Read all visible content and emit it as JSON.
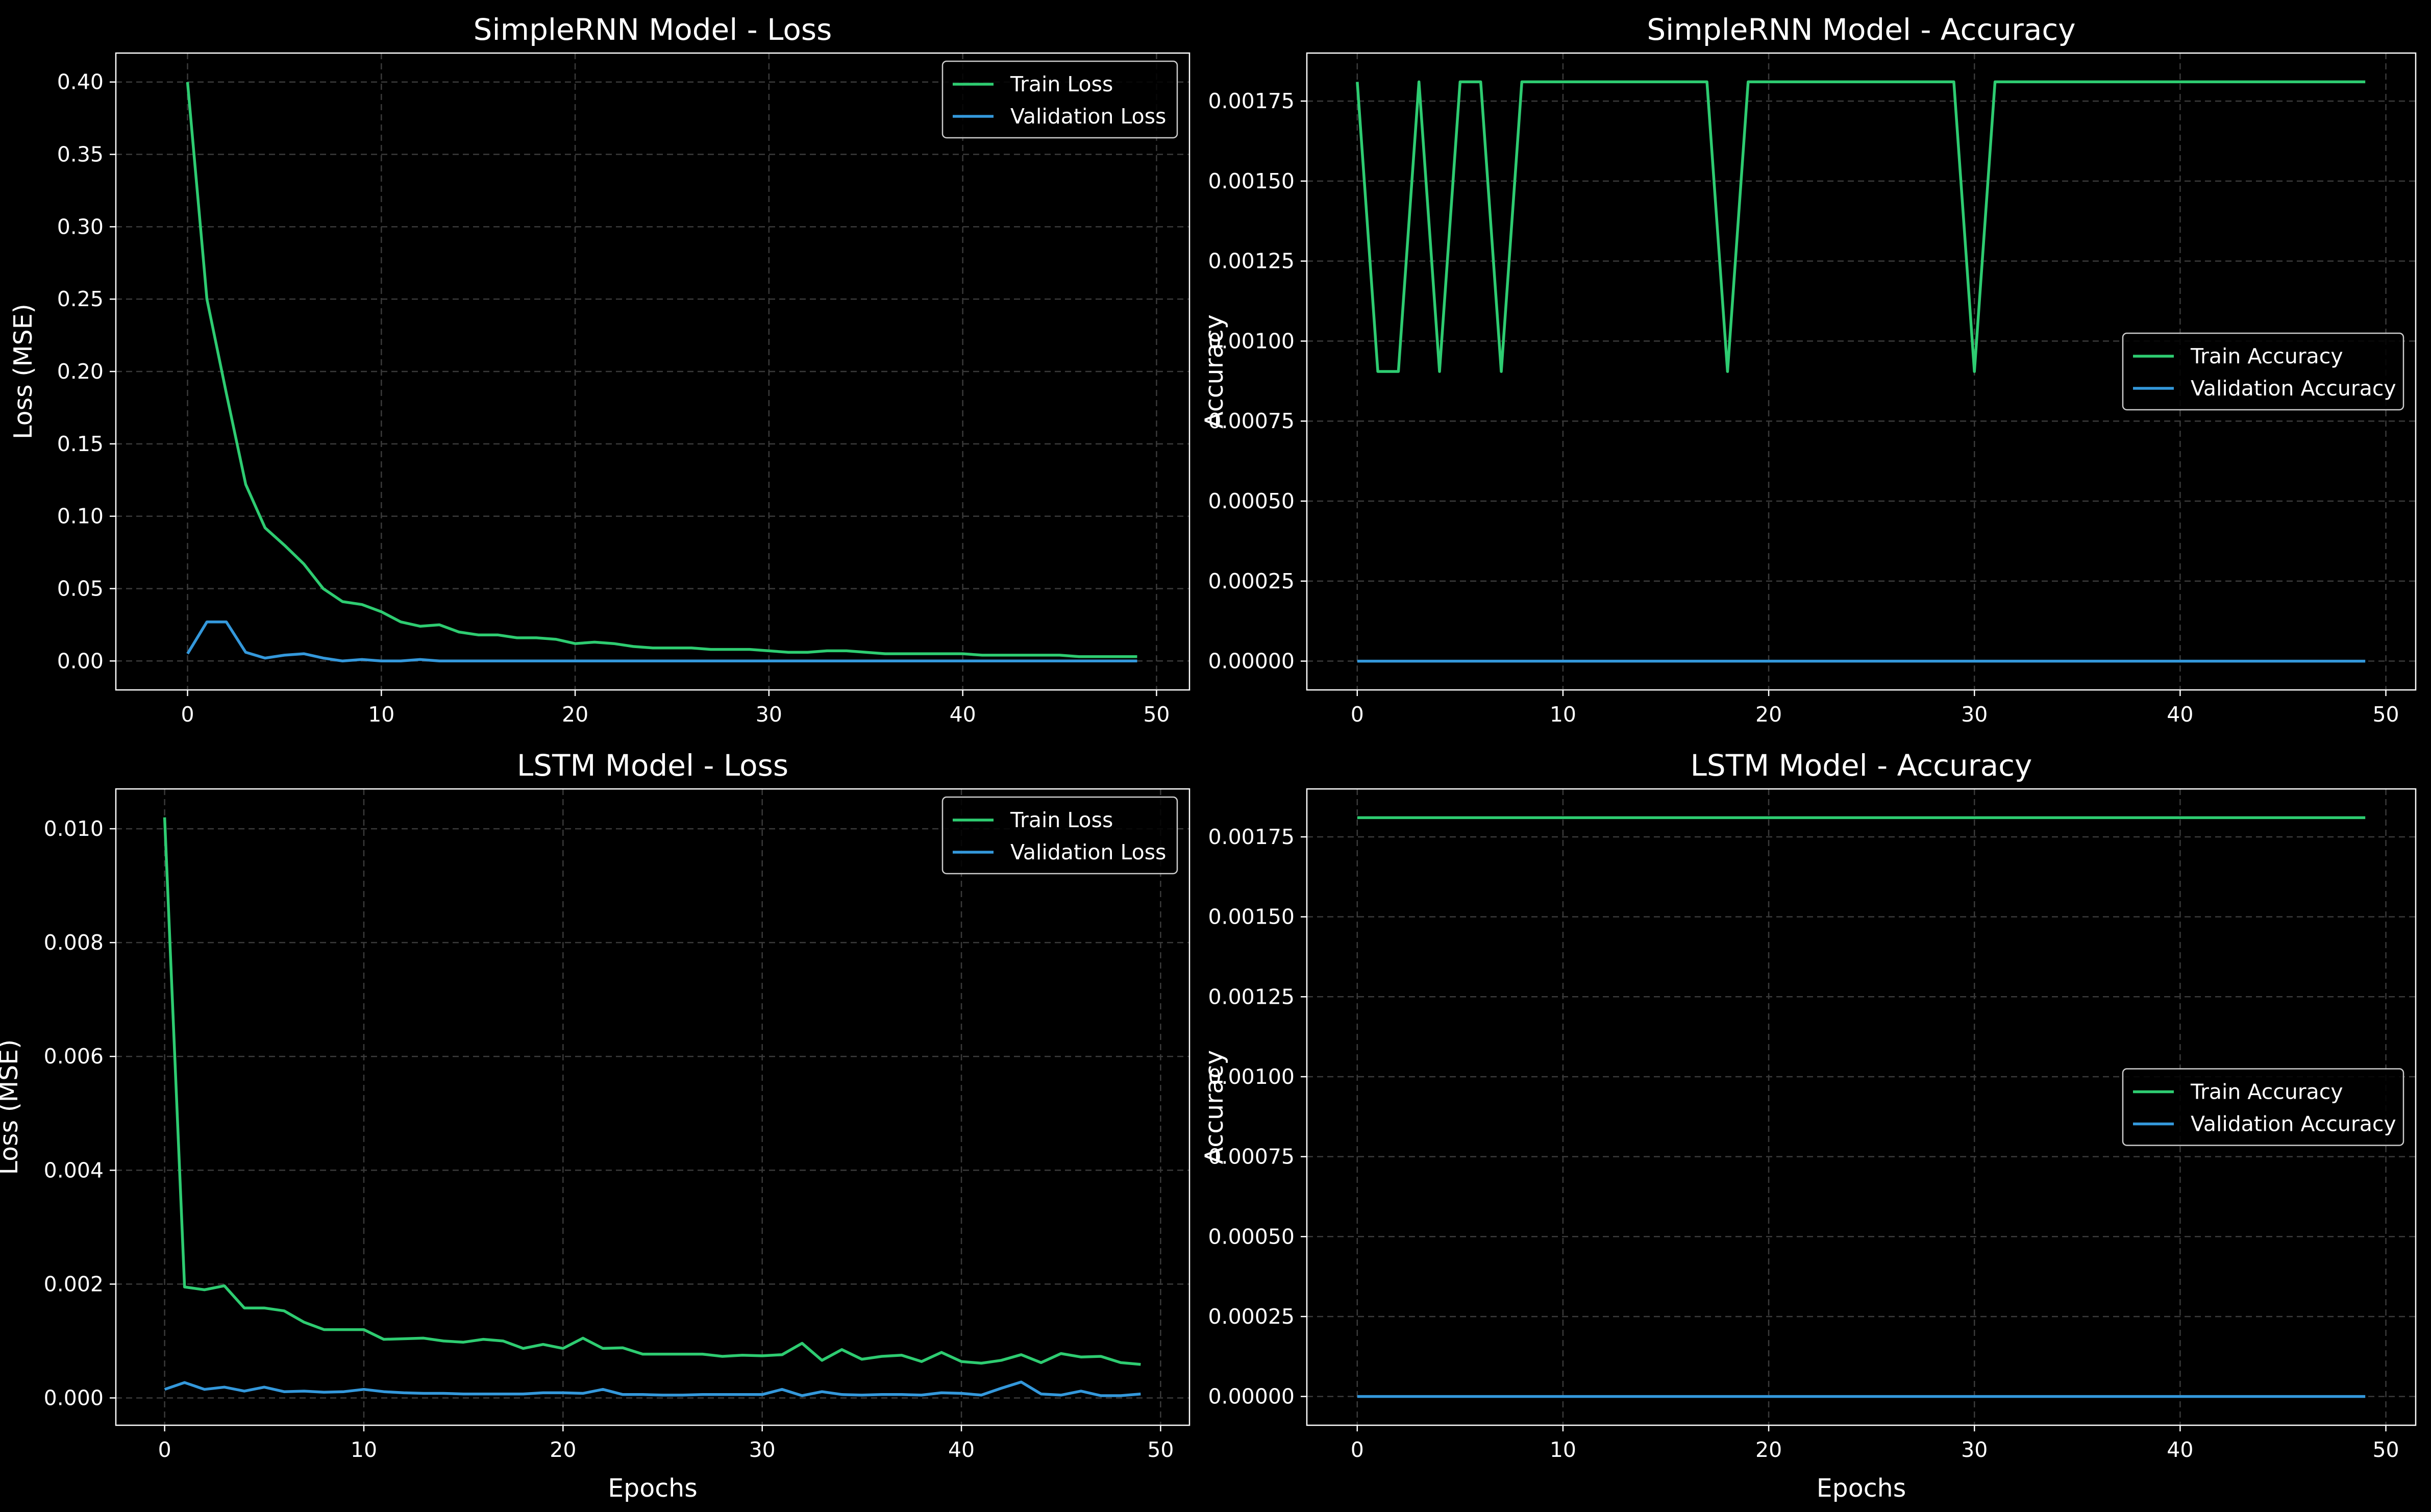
{
  "colors": {
    "background": "#000000",
    "train": "#2ecc71",
    "validation": "#3498db",
    "grid": "#3a3a3a",
    "text": "#ffffff"
  },
  "chart_data": [
    {
      "type": "line",
      "title": "SimpleRNN Model - Loss",
      "xlabel": "",
      "ylabel": "Loss (MSE)",
      "xlim": [
        -3.7,
        51.7
      ],
      "ylim": [
        -0.02,
        0.42
      ],
      "xticks": [
        0,
        10,
        20,
        30,
        40,
        50
      ],
      "xtick_labels": [
        "0",
        "10",
        "20",
        "30",
        "40",
        "50"
      ],
      "yticks": [
        0,
        0.05,
        0.1,
        0.15,
        0.2,
        0.25,
        0.3,
        0.35,
        0.4
      ],
      "ytick_labels": [
        "0.00",
        "0.05",
        "0.10",
        "0.15",
        "0.20",
        "0.25",
        "0.30",
        "0.35",
        "0.40"
      ],
      "grid": true,
      "legend_position": "upper right",
      "x": [
        0,
        1,
        2,
        3,
        4,
        5,
        6,
        7,
        8,
        9,
        10,
        11,
        12,
        13,
        14,
        15,
        16,
        17,
        18,
        19,
        20,
        21,
        22,
        23,
        24,
        25,
        26,
        27,
        28,
        29,
        30,
        31,
        32,
        33,
        34,
        35,
        36,
        37,
        38,
        39,
        40,
        41,
        42,
        43,
        44,
        45,
        46,
        47,
        48,
        49
      ],
      "series": [
        {
          "name": "Train Loss",
          "color": "#2ecc71",
          "values": [
            0.4,
            0.25,
            0.185,
            0.122,
            0.092,
            0.08,
            0.067,
            0.05,
            0.041,
            0.039,
            0.034,
            0.027,
            0.024,
            0.025,
            0.02,
            0.018,
            0.018,
            0.016,
            0.016,
            0.015,
            0.012,
            0.013,
            0.012,
            0.01,
            0.009,
            0.009,
            0.009,
            0.008,
            0.008,
            0.008,
            0.007,
            0.006,
            0.006,
            0.007,
            0.007,
            0.006,
            0.005,
            0.005,
            0.005,
            0.005,
            0.005,
            0.004,
            0.004,
            0.004,
            0.004,
            0.004,
            0.003,
            0.003,
            0.003,
            0.003
          ]
        },
        {
          "name": "Validation Loss",
          "color": "#3498db",
          "values": [
            0.005,
            0.027,
            0.027,
            0.006,
            0.002,
            0.004,
            0.005,
            0.002,
            0.0,
            0.001,
            0.0,
            0.0,
            0.001,
            0.0,
            0.0,
            0.0,
            0.0,
            0.0,
            0.0,
            0.0,
            0.0,
            0.0,
            0.0,
            0.0,
            0.0,
            0.0,
            0.0,
            0.0,
            0.0,
            0.0,
            0.0,
            0.0,
            0.0,
            0.0,
            0.0,
            0.0,
            0.0,
            0.0,
            0.0,
            0.0,
            0.0,
            0.0,
            0.0,
            0.0,
            0.0,
            0.0,
            0.0,
            0.0,
            0.0,
            0.0
          ]
        }
      ]
    },
    {
      "type": "line",
      "title": "SimpleRNN Model - Accuracy",
      "xlabel": "",
      "ylabel": "Accuracy",
      "xlim": [
        -2.45,
        51.45
      ],
      "ylim": [
        -9e-05,
        0.0019
      ],
      "xticks": [
        0,
        10,
        20,
        30,
        40,
        50
      ],
      "xtick_labels": [
        "0",
        "10",
        "20",
        "30",
        "40",
        "50"
      ],
      "yticks": [
        0,
        0.00025,
        0.0005,
        0.00075,
        0.001,
        0.00125,
        0.0015,
        0.00175
      ],
      "ytick_labels": [
        "0.00000",
        "0.00025",
        "0.00050",
        "0.00075",
        "0.00100",
        "0.00125",
        "0.00150",
        "0.00175"
      ],
      "grid": true,
      "legend_position": "center right",
      "x": [
        0,
        1,
        2,
        3,
        4,
        5,
        6,
        7,
        8,
        9,
        10,
        11,
        12,
        13,
        14,
        15,
        16,
        17,
        18,
        19,
        20,
        21,
        22,
        23,
        24,
        25,
        26,
        27,
        28,
        29,
        30,
        31,
        32,
        33,
        34,
        35,
        36,
        37,
        38,
        39,
        40,
        41,
        42,
        43,
        44,
        45,
        46,
        47,
        48,
        49
      ],
      "series": [
        {
          "name": "Train Accuracy",
          "color": "#2ecc71",
          "values": [
            0.00181,
            0.000905,
            0.000905,
            0.00181,
            0.000905,
            0.00181,
            0.00181,
            0.000905,
            0.00181,
            0.00181,
            0.00181,
            0.00181,
            0.00181,
            0.00181,
            0.00181,
            0.00181,
            0.00181,
            0.00181,
            0.000905,
            0.00181,
            0.00181,
            0.00181,
            0.00181,
            0.00181,
            0.00181,
            0.00181,
            0.00181,
            0.00181,
            0.00181,
            0.00181,
            0.000905,
            0.00181,
            0.00181,
            0.00181,
            0.00181,
            0.00181,
            0.00181,
            0.00181,
            0.00181,
            0.00181,
            0.00181,
            0.00181,
            0.00181,
            0.00181,
            0.00181,
            0.00181,
            0.00181,
            0.00181,
            0.00181,
            0.00181
          ]
        },
        {
          "name": "Validation Accuracy",
          "color": "#3498db",
          "values": [
            0,
            0,
            0,
            0,
            0,
            0,
            0,
            0,
            0,
            0,
            0,
            0,
            0,
            0,
            0,
            0,
            0,
            0,
            0,
            0,
            0,
            0,
            0,
            0,
            0,
            0,
            0,
            0,
            0,
            0,
            0,
            0,
            0,
            0,
            0,
            0,
            0,
            0,
            0,
            0,
            0,
            0,
            0,
            0,
            0,
            0,
            0,
            0,
            0,
            0
          ]
        }
      ]
    },
    {
      "type": "line",
      "title": "LSTM Model - Loss",
      "xlabel": "Epochs",
      "ylabel": "Loss (MSE)",
      "xlim": [
        -2.45,
        51.45
      ],
      "ylim": [
        -0.00048,
        0.0107
      ],
      "xticks": [
        0,
        10,
        20,
        30,
        40,
        50
      ],
      "xtick_labels": [
        "0",
        "10",
        "20",
        "30",
        "40",
        "50"
      ],
      "yticks": [
        0,
        0.002,
        0.004,
        0.006,
        0.008,
        0.01
      ],
      "ytick_labels": [
        "0.000",
        "0.002",
        "0.004",
        "0.006",
        "0.008",
        "0.010"
      ],
      "grid": true,
      "legend_position": "upper right",
      "x": [
        0,
        1,
        2,
        3,
        4,
        5,
        6,
        7,
        8,
        9,
        10,
        11,
        12,
        13,
        14,
        15,
        16,
        17,
        18,
        19,
        20,
        21,
        22,
        23,
        24,
        25,
        26,
        27,
        28,
        29,
        30,
        31,
        32,
        33,
        34,
        35,
        36,
        37,
        38,
        39,
        40,
        41,
        42,
        43,
        44,
        45,
        46,
        47,
        48,
        49
      ],
      "series": [
        {
          "name": "Train Loss",
          "color": "#2ecc71",
          "values": [
            0.0102,
            0.00195,
            0.0019,
            0.00197,
            0.00158,
            0.00158,
            0.00153,
            0.00133,
            0.0012,
            0.0012,
            0.0012,
            0.00103,
            0.00104,
            0.00105,
            0.001,
            0.00098,
            0.00103,
            0.001,
            0.00087,
            0.00094,
            0.00087,
            0.00105,
            0.00087,
            0.00088,
            0.00077,
            0.00077,
            0.00077,
            0.00077,
            0.00073,
            0.00075,
            0.00074,
            0.00076,
            0.00096,
            0.00066,
            0.00085,
            0.00068,
            0.00073,
            0.00075,
            0.00064,
            0.0008,
            0.00064,
            0.00061,
            0.00066,
            0.00076,
            0.00062,
            0.00078,
            0.00072,
            0.00073,
            0.00062,
            0.00059
          ]
        },
        {
          "name": "Validation Loss",
          "color": "#3498db",
          "values": [
            0.00015,
            0.00027,
            0.00015,
            0.00019,
            0.00012,
            0.00019,
            0.00011,
            0.00012,
            0.0001,
            0.00011,
            0.00015,
            0.00011,
            9e-05,
            8e-05,
            8e-05,
            7e-05,
            7e-05,
            7e-05,
            7e-05,
            9e-05,
            9e-05,
            8e-05,
            0.00015,
            6e-05,
            6e-05,
            5e-05,
            5e-05,
            6e-05,
            6e-05,
            6e-05,
            6e-05,
            0.00015,
            4e-05,
            0.00011,
            6e-05,
            5e-05,
            6e-05,
            6e-05,
            5e-05,
            9e-05,
            8e-05,
            5e-05,
            0.00017,
            0.00028,
            7e-05,
            5e-05,
            0.00012,
            4e-05,
            4e-05,
            7e-05
          ]
        }
      ]
    },
    {
      "type": "line",
      "title": "LSTM Model - Accuracy",
      "xlabel": "Epochs",
      "ylabel": "Accuracy",
      "xlim": [
        -2.45,
        51.45
      ],
      "ylim": [
        -9e-05,
        0.0019
      ],
      "xticks": [
        0,
        10,
        20,
        30,
        40,
        50
      ],
      "xtick_labels": [
        "0",
        "10",
        "20",
        "30",
        "40",
        "50"
      ],
      "yticks": [
        0,
        0.00025,
        0.0005,
        0.00075,
        0.001,
        0.00125,
        0.0015,
        0.00175
      ],
      "ytick_labels": [
        "0.00000",
        "0.00025",
        "0.00050",
        "0.00075",
        "0.00100",
        "0.00125",
        "0.00150",
        "0.00175"
      ],
      "grid": true,
      "legend_position": "center right",
      "x": [
        0,
        1,
        2,
        3,
        4,
        5,
        6,
        7,
        8,
        9,
        10,
        11,
        12,
        13,
        14,
        15,
        16,
        17,
        18,
        19,
        20,
        21,
        22,
        23,
        24,
        25,
        26,
        27,
        28,
        29,
        30,
        31,
        32,
        33,
        34,
        35,
        36,
        37,
        38,
        39,
        40,
        41,
        42,
        43,
        44,
        45,
        46,
        47,
        48,
        49
      ],
      "series": [
        {
          "name": "Train Accuracy",
          "color": "#2ecc71",
          "values": [
            0.00181,
            0.00181,
            0.00181,
            0.00181,
            0.00181,
            0.00181,
            0.00181,
            0.00181,
            0.00181,
            0.00181,
            0.00181,
            0.00181,
            0.00181,
            0.00181,
            0.00181,
            0.00181,
            0.00181,
            0.00181,
            0.00181,
            0.00181,
            0.00181,
            0.00181,
            0.00181,
            0.00181,
            0.00181,
            0.00181,
            0.00181,
            0.00181,
            0.00181,
            0.00181,
            0.00181,
            0.00181,
            0.00181,
            0.00181,
            0.00181,
            0.00181,
            0.00181,
            0.00181,
            0.00181,
            0.00181,
            0.00181,
            0.00181,
            0.00181,
            0.00181,
            0.00181,
            0.00181,
            0.00181,
            0.00181,
            0.00181,
            0.00181
          ]
        },
        {
          "name": "Validation Accuracy",
          "color": "#3498db",
          "values": [
            0,
            0,
            0,
            0,
            0,
            0,
            0,
            0,
            0,
            0,
            0,
            0,
            0,
            0,
            0,
            0,
            0,
            0,
            0,
            0,
            0,
            0,
            0,
            0,
            0,
            0,
            0,
            0,
            0,
            0,
            0,
            0,
            0,
            0,
            0,
            0,
            0,
            0,
            0,
            0,
            0,
            0,
            0,
            0,
            0,
            0,
            0,
            0,
            0,
            0
          ]
        }
      ]
    }
  ]
}
